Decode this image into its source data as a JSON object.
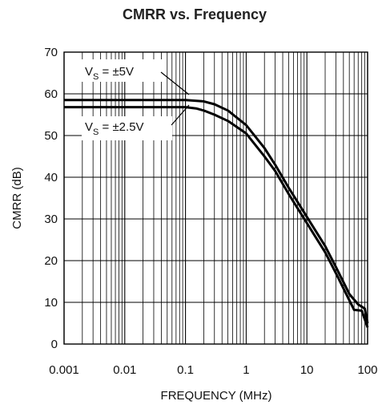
{
  "chart_data": {
    "type": "line",
    "title": "CMRR vs. Frequency",
    "xlabel": "FREQUENCY (MHz)",
    "ylabel": "CMRR (dB)",
    "x_scale": "log",
    "xlim": [
      0.001,
      100
    ],
    "ylim": [
      0,
      70
    ],
    "x_ticks": [
      0.001,
      0.01,
      0.1,
      1,
      10,
      100
    ],
    "x_tick_labels": [
      "0.001",
      "0.01",
      "0.1",
      "1",
      "10",
      "100"
    ],
    "y_ticks": [
      0,
      10,
      20,
      30,
      40,
      50,
      60,
      70
    ],
    "y_tick_labels": [
      "0",
      "10",
      "20",
      "30",
      "40",
      "50",
      "60",
      "70"
    ],
    "grid": true,
    "series": [
      {
        "name": "V_S = ±5V",
        "label_main": "V",
        "label_sub": "S",
        "label_rest": " = ±5V",
        "x": [
          0.001,
          0.01,
          0.1,
          0.2,
          0.3,
          0.5,
          1,
          2,
          3,
          5,
          10,
          20,
          30,
          50,
          70,
          90,
          100
        ],
        "y": [
          58.5,
          58.5,
          58.5,
          58.2,
          57.5,
          56,
          52.5,
          47,
          43,
          37.5,
          30.5,
          23.5,
          18.5,
          12,
          9.5,
          8.5,
          5
        ]
      },
      {
        "name": "V_S = ±2.5V",
        "label_main": "V",
        "label_sub": "S",
        "label_rest": " = ±2.5V",
        "x": [
          0.001,
          0.01,
          0.1,
          0.15,
          0.2,
          0.3,
          0.5,
          1,
          2,
          3,
          5,
          10,
          20,
          30,
          50,
          60,
          80,
          100
        ],
        "y": [
          56.8,
          56.8,
          56.8,
          56.5,
          56,
          55,
          53.5,
          50.5,
          45,
          41.5,
          36,
          29,
          22,
          17,
          10.5,
          8.2,
          8,
          4
        ]
      }
    ]
  }
}
